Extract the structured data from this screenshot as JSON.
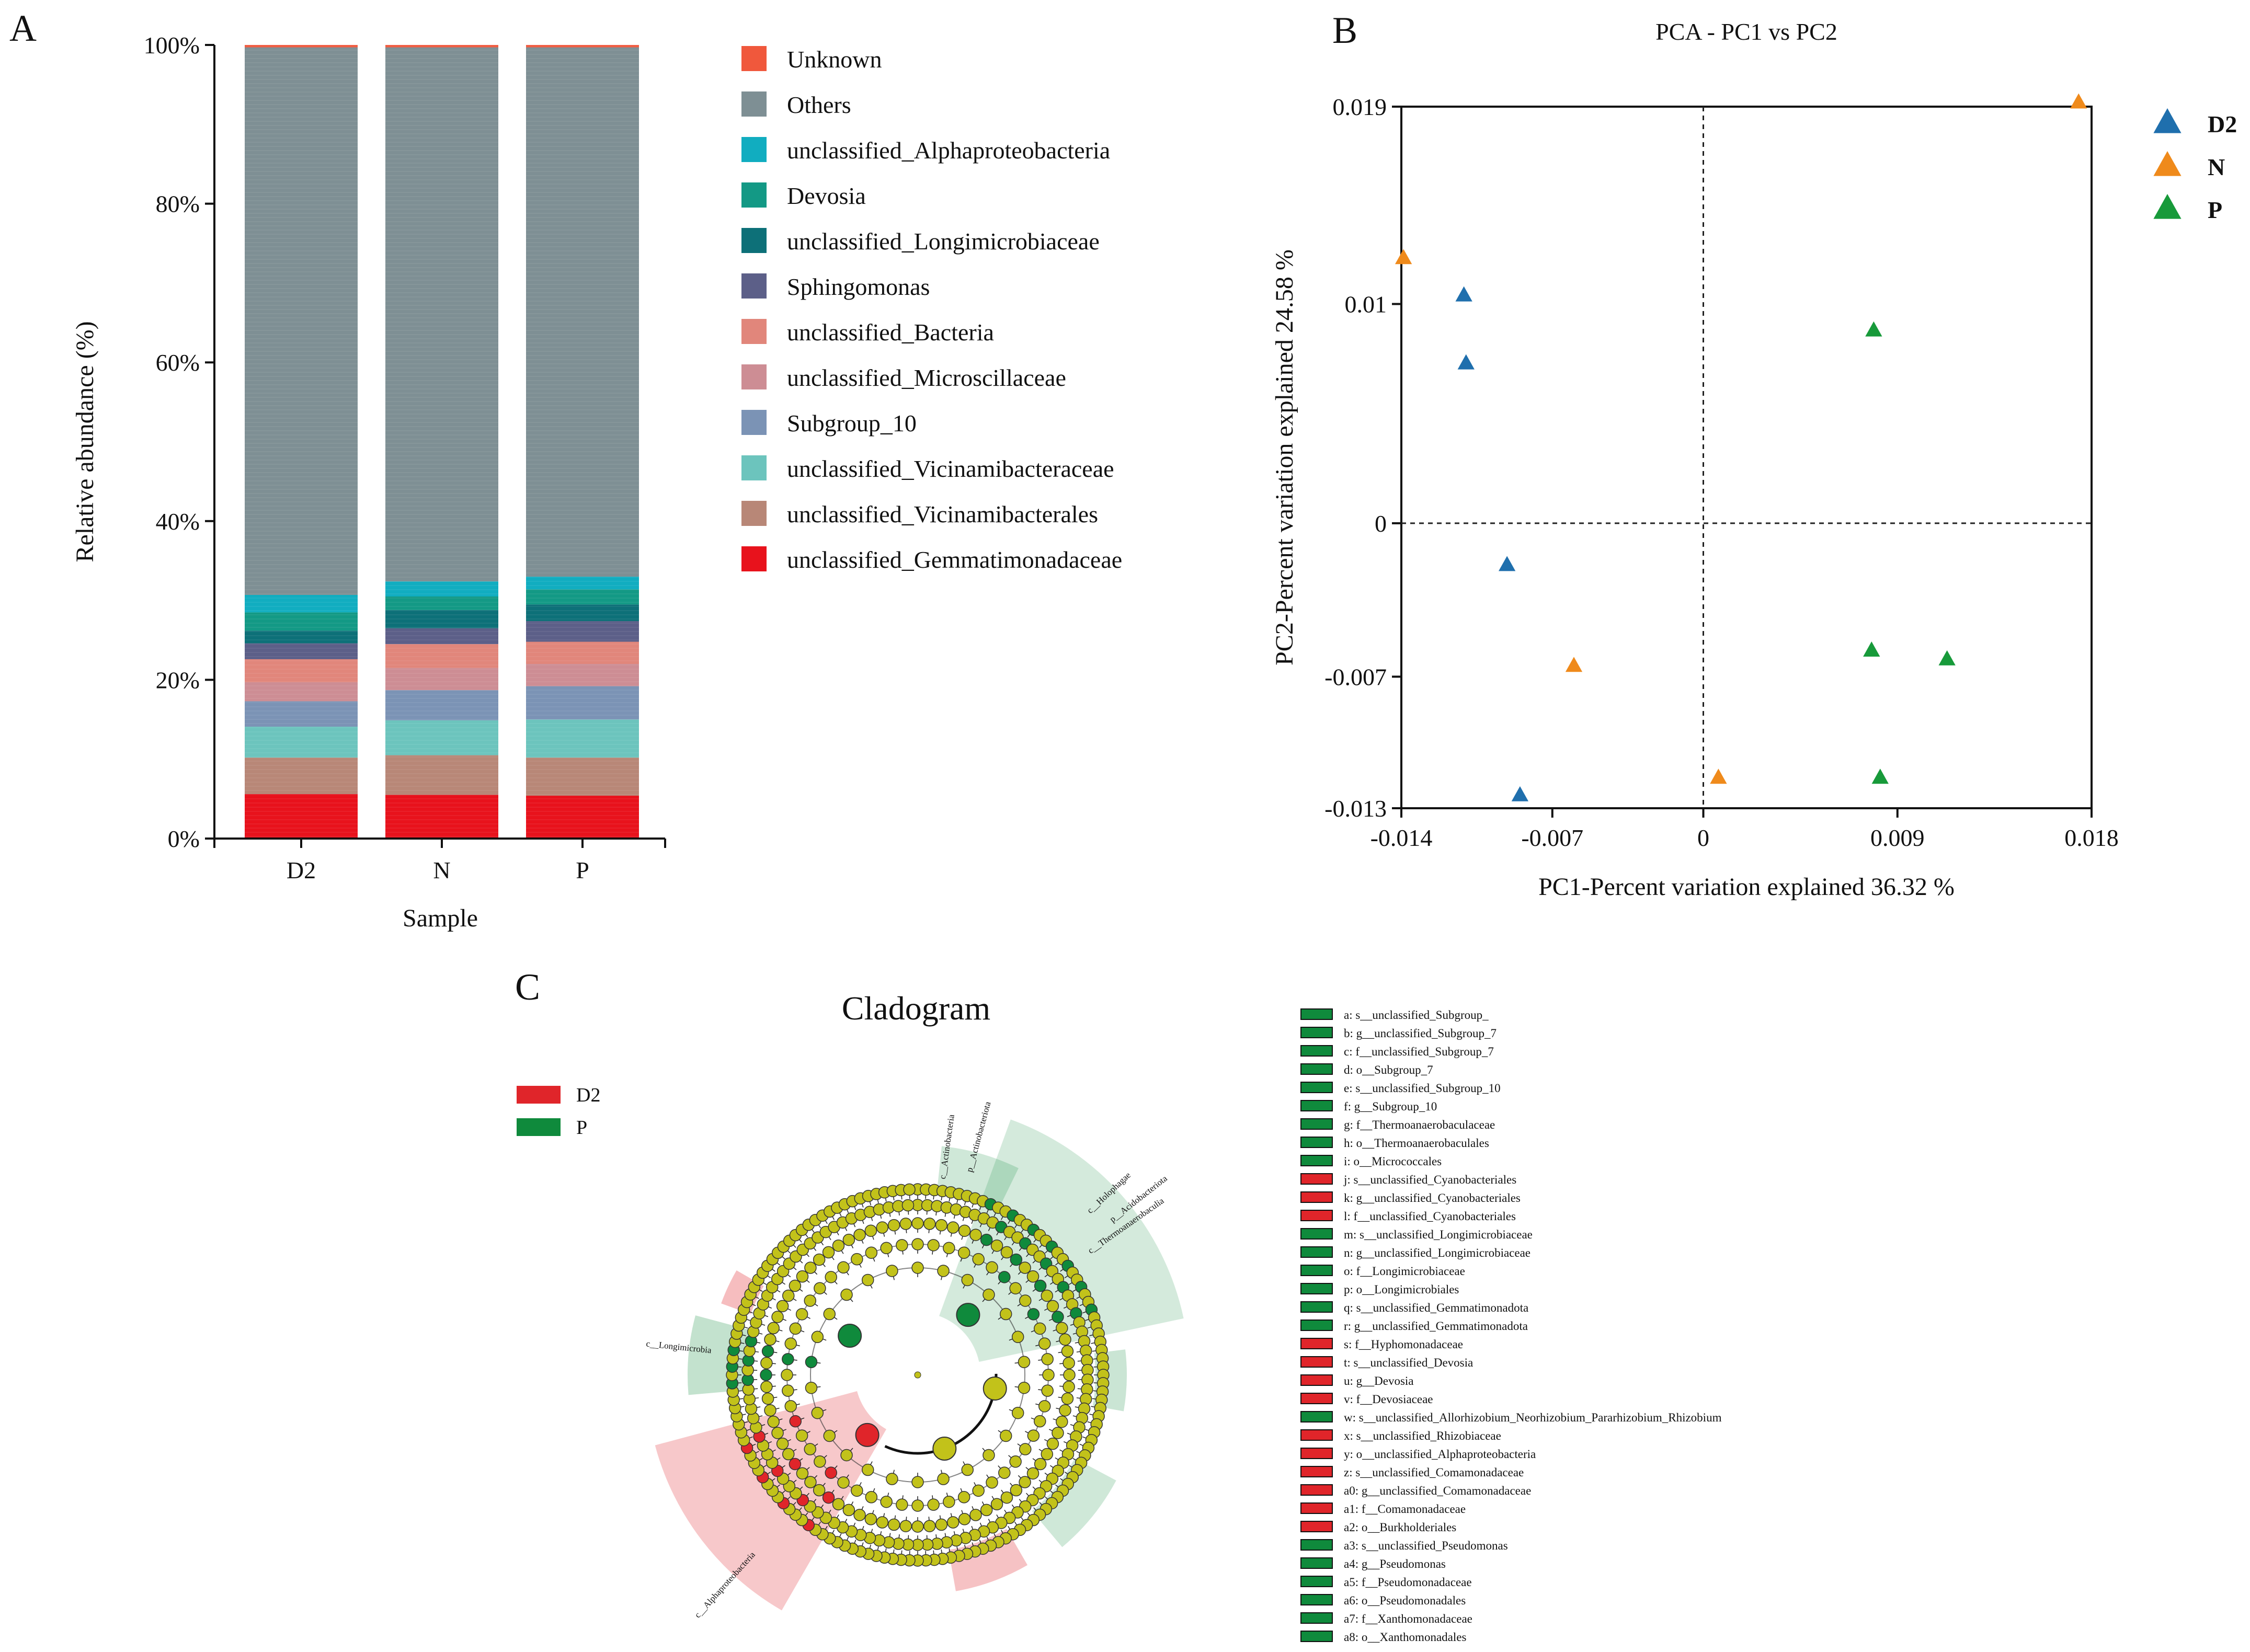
{
  "panels": {
    "A": {
      "letter": "A"
    },
    "B": {
      "letter": "B"
    },
    "C": {
      "letter": "C"
    }
  },
  "chart_data": [
    {
      "type": "bar",
      "stacked": true,
      "title": "",
      "xlabel": "Sample",
      "ylabel": "Relative abundance (%)",
      "categories": [
        "D2",
        "N",
        "P"
      ],
      "ylim": [
        0,
        100
      ],
      "yticks": [
        "0%",
        "20%",
        "40%",
        "60%",
        "80%",
        "100%"
      ],
      "legend_position": "right",
      "series": [
        {
          "name": "unclassified_Gemmatimonadaceae",
          "color": "#e8121c",
          "values": [
            5.6,
            5.5,
            5.4
          ]
        },
        {
          "name": "unclassified_Vicinamibacterales",
          "color": "#b88777",
          "values": [
            4.6,
            5.0,
            4.8
          ]
        },
        {
          "name": "unclassified_Vicinamibacteraceae",
          "color": "#6cc4bd",
          "values": [
            3.9,
            4.4,
            4.8
          ]
        },
        {
          "name": "Subgroup_10",
          "color": "#7b93b5",
          "values": [
            3.2,
            3.8,
            4.2
          ]
        },
        {
          "name": "unclassified_Microscillaceae",
          "color": "#cd8d94",
          "values": [
            2.4,
            2.8,
            2.8
          ]
        },
        {
          "name": "unclassified_Bacteria",
          "color": "#e1867b",
          "values": [
            2.9,
            3.0,
            2.8
          ]
        },
        {
          "name": "Sphingomonas",
          "color": "#5c5f88",
          "values": [
            2.0,
            2.0,
            2.6
          ]
        },
        {
          "name": "unclassified_Longimicrobiaceae",
          "color": "#0d7078",
          "values": [
            1.6,
            2.3,
            2.1
          ]
        },
        {
          "name": "Devosia",
          "color": "#139985",
          "values": [
            2.3,
            1.7,
            1.9
          ]
        },
        {
          "name": "unclassified_Alphaproteobacteria",
          "color": "#11adc0",
          "values": [
            2.2,
            1.9,
            1.6
          ]
        },
        {
          "name": "Others",
          "color": "#7e8f94",
          "values": [
            69.0,
            67.3,
            66.7
          ]
        },
        {
          "name": "Unknown",
          "color": "#f0583c",
          "values": [
            0.3,
            0.3,
            0.3
          ]
        }
      ]
    },
    {
      "type": "scatter",
      "title": "PCA - PC1 vs PC2",
      "xlabel": "PC1-Percent variation explained 36.32 %",
      "ylabel": "PC2-Percent variation explained 24.58 %",
      "xlim": [
        -0.014,
        0.018
      ],
      "ylim": [
        -0.013,
        0.019
      ],
      "xticks": [
        "-0.014",
        "-0.007",
        "0",
        "0.009",
        "0.018"
      ],
      "xtick_values": [
        -0.014,
        -0.007,
        0,
        0.009,
        0.018
      ],
      "yticks": [
        "-0.013",
        "-0.007",
        "0",
        "0.01",
        "0.019"
      ],
      "ytick_values": [
        -0.013,
        -0.007,
        0,
        0.01,
        0.019
      ],
      "reference_lines": {
        "x": 0,
        "y": 0,
        "style": "dashed"
      },
      "marker": "triangle",
      "legend_position": "top-right",
      "series": [
        {
          "name": "D2",
          "color": "#1f6fad",
          "points": [
            [
              -0.0111,
              0.0104
            ],
            [
              -0.011,
              0.0073
            ],
            [
              -0.0091,
              -0.0019
            ],
            [
              -0.0085,
              -0.0124
            ]
          ]
        },
        {
          "name": "N",
          "color": "#ef8a1b",
          "points": [
            [
              -0.0139,
              0.0121
            ],
            [
              -0.006,
              -0.0065
            ],
            [
              0.0007,
              -0.0116
            ],
            [
              0.0174,
              0.0192
            ]
          ]
        },
        {
          "name": "P",
          "color": "#179a3a",
          "points": [
            [
              0.0079,
              0.0088
            ],
            [
              0.0078,
              -0.0058
            ],
            [
              0.0082,
              -0.0116
            ],
            [
              0.0113,
              -0.0062
            ]
          ]
        }
      ]
    }
  ],
  "cladogram": {
    "title": "Cladogram",
    "group_legend": [
      {
        "name": "D2",
        "color": "#e0252a"
      },
      {
        "name": "P",
        "color": "#0f8a3c"
      }
    ],
    "sector_labels": [
      {
        "text": "p__Actinobacteriota",
        "group": "P"
      },
      {
        "text": "c__Actinobacteria",
        "group": "P"
      },
      {
        "text": "p__Acidobacteriota",
        "group": "P"
      },
      {
        "text": "c__Holophagae",
        "group": "P"
      },
      {
        "text": "c__Thermoanaerobaculia",
        "group": "P"
      },
      {
        "text": "c__Longimicrobia",
        "group": "P"
      },
      {
        "text": "c__Alphaproteobacteria",
        "group": "D2"
      }
    ],
    "biomarkers": [
      {
        "text": "a: s__unclassified_Subgroup_",
        "group": "P"
      },
      {
        "text": "b: g__unclassified_Subgroup_7",
        "group": "P"
      },
      {
        "text": "c: f__unclassified_Subgroup_7",
        "group": "P"
      },
      {
        "text": "d: o__Subgroup_7",
        "group": "P"
      },
      {
        "text": "e: s__unclassified_Subgroup_10",
        "group": "P"
      },
      {
        "text": "f: g__Subgroup_10",
        "group": "P"
      },
      {
        "text": "g: f__Thermoanaerobaculaceae",
        "group": "P"
      },
      {
        "text": "h: o__Thermoanaerobaculales",
        "group": "P"
      },
      {
        "text": "i: o__Micrococcales",
        "group": "P"
      },
      {
        "text": "j: s__unclassified_Cyanobacteriales",
        "group": "D2"
      },
      {
        "text": "k: g__unclassified_Cyanobacteriales",
        "group": "D2"
      },
      {
        "text": "l: f__unclassified_Cyanobacteriales",
        "group": "D2"
      },
      {
        "text": "m: s__unclassified_Longimicrobiaceae",
        "group": "P"
      },
      {
        "text": "n: g__unclassified_Longimicrobiaceae",
        "group": "P"
      },
      {
        "text": "o: f__Longimicrobiaceae",
        "group": "P"
      },
      {
        "text": "p: o__Longimicrobiales",
        "group": "P"
      },
      {
        "text": "q: s__unclassified_Gemmatimonadota",
        "group": "P"
      },
      {
        "text": "r: g__unclassified_Gemmatimonadota",
        "group": "P"
      },
      {
        "text": "s: f__Hyphomonadaceae",
        "group": "D2"
      },
      {
        "text": "t: s__unclassified_Devosia",
        "group": "D2"
      },
      {
        "text": "u: g__Devosia",
        "group": "D2"
      },
      {
        "text": "v: f__Devosiaceae",
        "group": "D2"
      },
      {
        "text": "w: s__unclassified_Allorhizobium_Neorhizobium_Pararhizobium_Rhizobium",
        "group": "P"
      },
      {
        "text": "x: s__unclassified_Rhizobiaceae",
        "group": "D2"
      },
      {
        "text": "y: o__unclassified_Alphaproteobacteria",
        "group": "D2"
      },
      {
        "text": "z: s__unclassified_Comamonadaceae",
        "group": "D2"
      },
      {
        "text": "a0: g__unclassified_Comamonadaceae",
        "group": "D2"
      },
      {
        "text": "a1: f__Comamonadaceae",
        "group": "D2"
      },
      {
        "text": "a2: o__Burkholderiales",
        "group": "D2"
      },
      {
        "text": "a3: s__unclassified_Pseudomonas",
        "group": "P"
      },
      {
        "text": "a4: g__Pseudomonas",
        "group": "P"
      },
      {
        "text": "a5: f__Pseudomonadaceae",
        "group": "P"
      },
      {
        "text": "a6: o__Pseudomonadales",
        "group": "P"
      },
      {
        "text": "a7: f__Xanthomonadaceae",
        "group": "P"
      },
      {
        "text": "a8: o__Xanthomonadales",
        "group": "P"
      }
    ],
    "colors": {
      "D2": "#e0252a",
      "P": "#0f8a3c",
      "node": "#c2c21a"
    }
  }
}
